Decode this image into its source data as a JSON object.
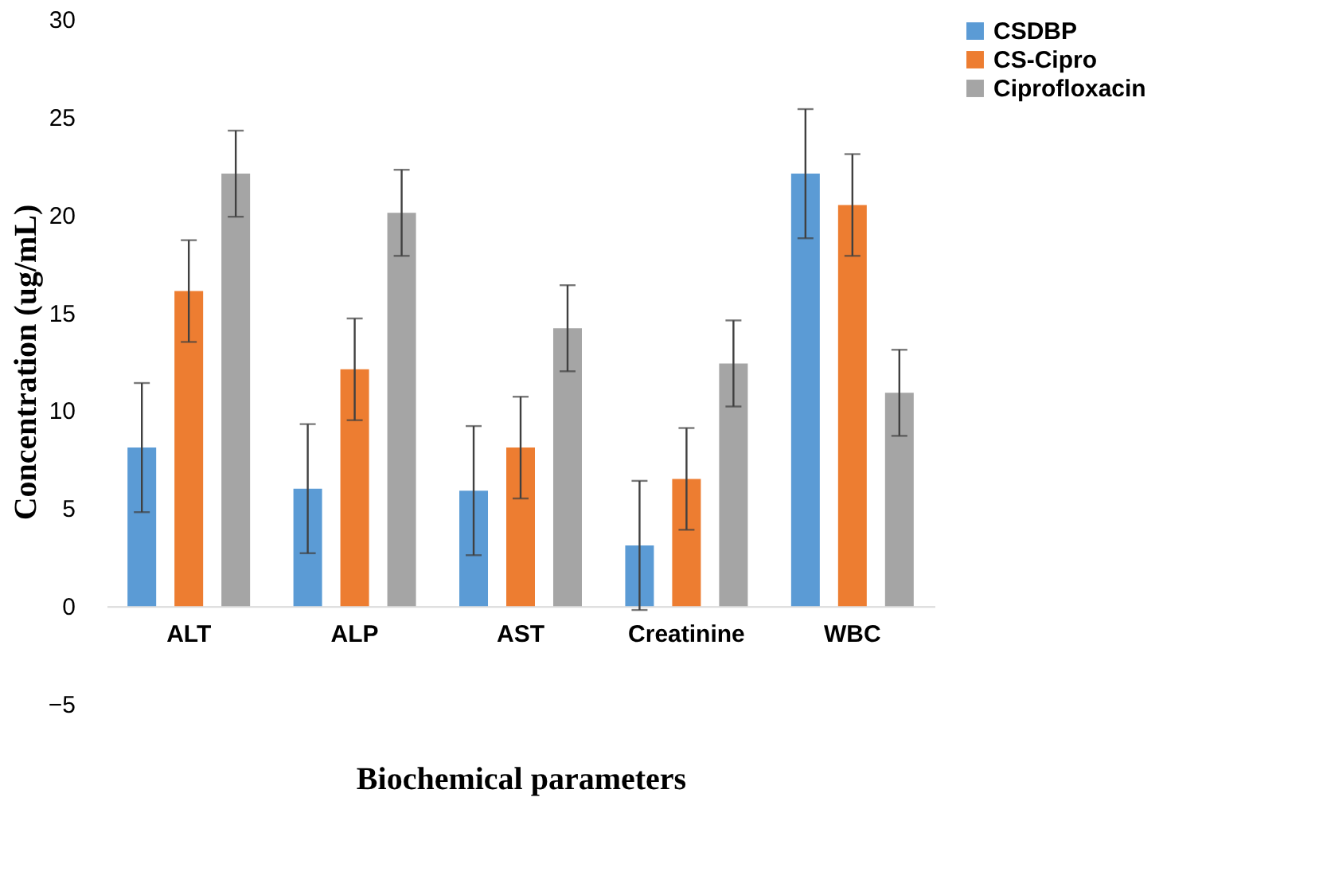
{
  "chart_data": {
    "type": "bar",
    "xlabel": "Biochemical parameters",
    "ylabel": "Concentration (ug/mL)",
    "categories": [
      "ALT",
      "ALP",
      "AST",
      "Creatinine",
      "WBC"
    ],
    "series": [
      {
        "name": "CSDBP",
        "color": "#5b9bd5",
        "values": [
          8.1,
          6.0,
          5.9,
          3.1,
          22.1
        ],
        "errors": [
          3.3,
          3.3,
          3.3,
          3.3,
          3.3
        ]
      },
      {
        "name": "CS-Cipro",
        "color": "#ed7d31",
        "values": [
          16.1,
          12.1,
          8.1,
          6.5,
          20.5
        ],
        "errors": [
          2.6,
          2.6,
          2.6,
          2.6,
          2.6
        ]
      },
      {
        "name": "Ciprofloxacin",
        "color": "#a5a5a5",
        "values": [
          22.1,
          20.1,
          14.2,
          12.4,
          10.9
        ],
        "errors": [
          2.2,
          2.2,
          2.2,
          2.2,
          2.2
        ]
      }
    ],
    "ylim": [
      -5,
      30
    ],
    "yticks": [
      -5,
      0,
      5,
      10,
      15,
      20,
      25,
      30
    ],
    "grid": false,
    "legend": "right"
  }
}
